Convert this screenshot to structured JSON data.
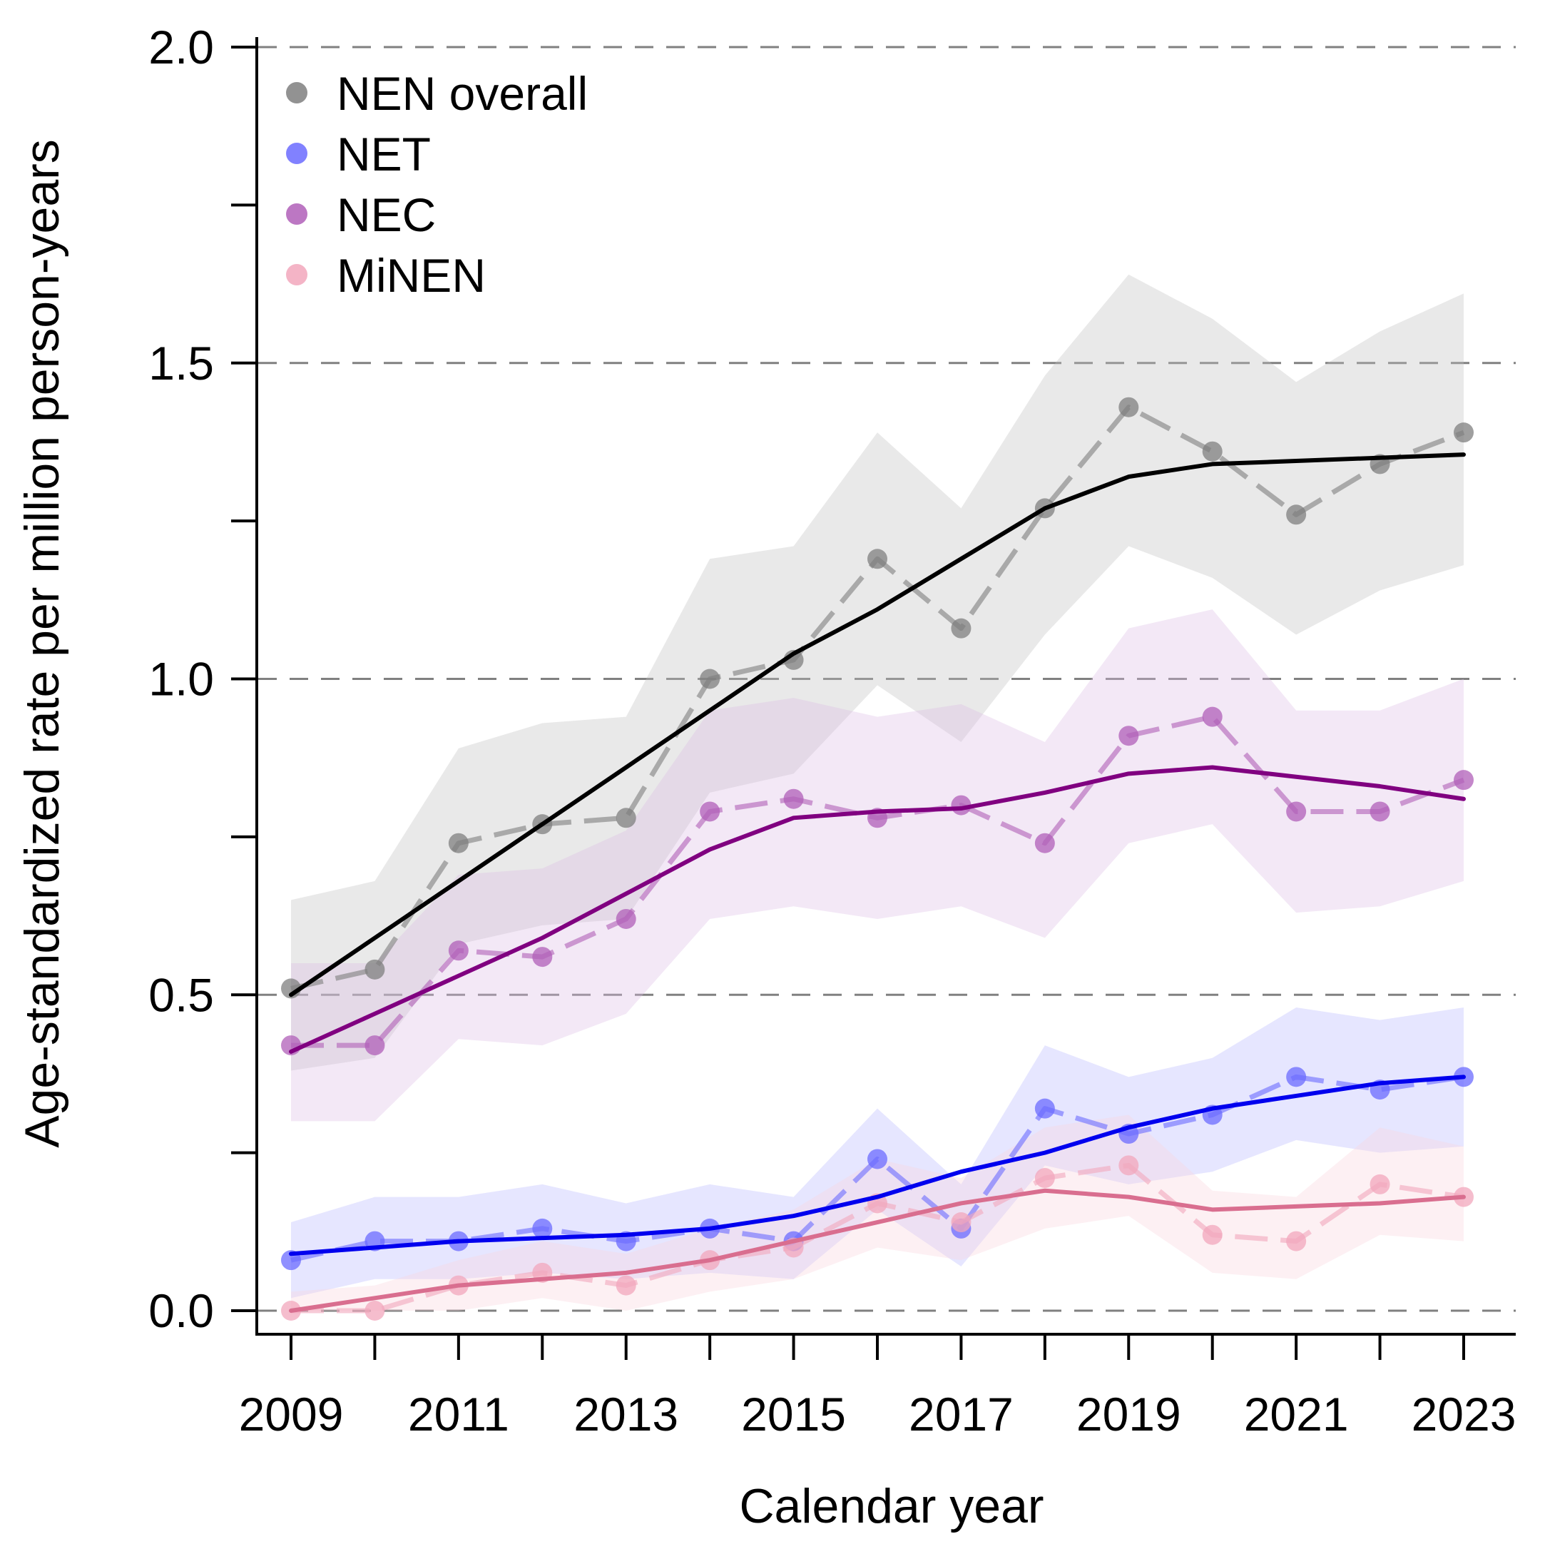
{
  "chart_data": {
    "type": "line",
    "title": "",
    "xlabel": "Calendar year",
    "ylabel": "Age-standardized rate per million person-years",
    "x": [
      2009,
      2010,
      2011,
      2012,
      2013,
      2014,
      2015,
      2016,
      2017,
      2018,
      2019,
      2020,
      2021,
      2022,
      2023
    ],
    "xlim": [
      2009,
      2023
    ],
    "ylim": [
      0.0,
      2.0
    ],
    "xticks": [
      "2009",
      "2011",
      "2013",
      "2015",
      "2017",
      "2019",
      "2021",
      "2023"
    ],
    "yticks": [
      "0.0",
      "0.5",
      "1.0",
      "1.5",
      "2.0"
    ],
    "grid": "horizontal dashed at major y ticks",
    "legend_position": "top-left",
    "series": [
      {
        "name": "NEN overall",
        "point_color": "#7f7f7f",
        "line_color": "#000000",
        "band_color": "#bfbfbf",
        "observed": [
          0.51,
          0.54,
          0.74,
          0.77,
          0.78,
          1.0,
          1.03,
          1.19,
          1.08,
          1.27,
          1.43,
          1.36,
          1.26,
          1.34,
          1.39
        ],
        "lower": [
          0.38,
          0.4,
          0.58,
          0.61,
          0.62,
          0.82,
          0.85,
          0.99,
          0.9,
          1.07,
          1.21,
          1.16,
          1.07,
          1.14,
          1.18
        ],
        "upper": [
          0.65,
          0.68,
          0.89,
          0.93,
          0.94,
          1.19,
          1.21,
          1.39,
          1.27,
          1.48,
          1.64,
          1.57,
          1.47,
          1.55,
          1.61
        ],
        "fitted": [
          0.5,
          0.59,
          0.68,
          0.77,
          0.86,
          0.95,
          1.04,
          1.11,
          1.19,
          1.27,
          1.32,
          1.34,
          1.345,
          1.35,
          1.355
        ]
      },
      {
        "name": "NET",
        "point_color": "#6b6bff",
        "line_color": "#0000ee",
        "band_color": "#b8b8ff",
        "observed": [
          0.08,
          0.11,
          0.11,
          0.13,
          0.11,
          0.13,
          0.11,
          0.24,
          0.13,
          0.32,
          0.28,
          0.31,
          0.37,
          0.35,
          0.37
        ],
        "lower": [
          0.02,
          0.05,
          0.05,
          0.06,
          0.05,
          0.06,
          0.05,
          0.16,
          0.07,
          0.23,
          0.2,
          0.22,
          0.27,
          0.25,
          0.26
        ],
        "upper": [
          0.14,
          0.18,
          0.18,
          0.2,
          0.17,
          0.2,
          0.18,
          0.32,
          0.2,
          0.42,
          0.37,
          0.4,
          0.48,
          0.46,
          0.48
        ],
        "fitted": [
          0.09,
          0.1,
          0.11,
          0.115,
          0.12,
          0.13,
          0.15,
          0.18,
          0.22,
          0.25,
          0.29,
          0.32,
          0.34,
          0.36,
          0.37
        ]
      },
      {
        "name": "NEC",
        "point_color": "#b05fb8",
        "line_color": "#800080",
        "band_color": "#dcbde4",
        "observed": [
          0.42,
          0.42,
          0.57,
          0.56,
          0.62,
          0.79,
          0.81,
          0.78,
          0.8,
          0.74,
          0.91,
          0.94,
          0.79,
          0.79,
          0.84
        ],
        "lower": [
          0.3,
          0.3,
          0.43,
          0.42,
          0.47,
          0.62,
          0.64,
          0.62,
          0.64,
          0.59,
          0.74,
          0.77,
          0.63,
          0.64,
          0.68
        ],
        "upper": [
          0.55,
          0.55,
          0.69,
          0.7,
          0.76,
          0.95,
          0.97,
          0.94,
          0.96,
          0.9,
          1.08,
          1.11,
          0.95,
          0.95,
          1.0
        ],
        "fitted": [
          0.41,
          0.47,
          0.53,
          0.59,
          0.66,
          0.73,
          0.78,
          0.79,
          0.795,
          0.82,
          0.85,
          0.86,
          0.845,
          0.83,
          0.81
        ]
      },
      {
        "name": "MiNEN",
        "point_color": "#f2a7bc",
        "line_color": "#d96e8f",
        "band_color": "#f8d4de",
        "observed": [
          0.0,
          0.0,
          0.04,
          0.06,
          0.04,
          0.08,
          0.1,
          0.17,
          0.14,
          0.21,
          0.23,
          0.12,
          0.11,
          0.2,
          0.18
        ],
        "lower": [
          0.0,
          0.0,
          0.0,
          0.02,
          0.0,
          0.03,
          0.05,
          0.1,
          0.08,
          0.13,
          0.15,
          0.06,
          0.05,
          0.12,
          0.11
        ],
        "upper": [
          0.03,
          0.04,
          0.08,
          0.11,
          0.09,
          0.13,
          0.16,
          0.24,
          0.21,
          0.29,
          0.31,
          0.19,
          0.18,
          0.29,
          0.26
        ],
        "fitted": [
          0.0,
          0.02,
          0.04,
          0.05,
          0.06,
          0.08,
          0.11,
          0.14,
          0.17,
          0.19,
          0.18,
          0.16,
          0.165,
          0.17,
          0.18
        ]
      }
    ]
  }
}
